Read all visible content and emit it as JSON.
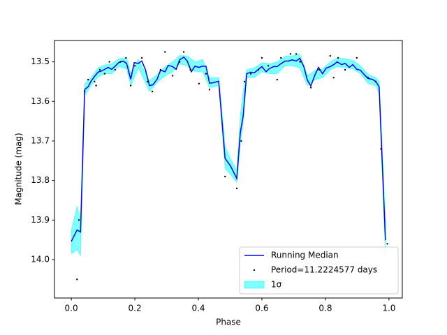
{
  "chart_data": {
    "type": "light-curve",
    "x_label": "Phase",
    "y_label": "Magnitude (mag)",
    "xlim": [
      -0.053,
      1.042
    ],
    "ylim": [
      13.446,
      14.097
    ],
    "invert_y": true,
    "xticks": [
      {
        "value": 0,
        "label": "0.0"
      },
      0.2,
      0.4,
      0.6,
      0.8,
      {
        "value": 1,
        "label": "1.0"
      }
    ],
    "yticks": [
      13.5,
      13.6,
      13.7,
      13.8,
      13.9,
      {
        "value": 14,
        "label": "14.0"
      }
    ],
    "legend": "lower right",
    "series": [
      {
        "name": "Running Median",
        "type": "line",
        "color": "#0000ff",
        "x": [
          0,
          0.018,
          0.029,
          0.042,
          0.053,
          0.062,
          0.073,
          0.084,
          0.095,
          0.105,
          0.116,
          0.127,
          0.138,
          0.149,
          0.163,
          0.174,
          0.187,
          0.198,
          0.211,
          0.222,
          0.233,
          0.246,
          0.257,
          0.27,
          0.281,
          0.295,
          0.305,
          0.319,
          0.33,
          0.341,
          0.354,
          0.365,
          0.378,
          0.389,
          0.402,
          0.413,
          0.424,
          0.435,
          0.446,
          0.464,
          0.484,
          0.501,
          0.521,
          0.532,
          0.541,
          0.552,
          0.565,
          0.576,
          0.589,
          0.6,
          0.613,
          0.624,
          0.637,
          0.648,
          0.659,
          0.673,
          0.684,
          0.695,
          0.708,
          0.719,
          0.732,
          0.743,
          0.754,
          0.767,
          0.778,
          0.791,
          0.802,
          0.815,
          0.826,
          0.837,
          0.851,
          0.862,
          0.875,
          0.886,
          0.899,
          0.91,
          0.923,
          0.934,
          0.947,
          0.958,
          0.969,
          0.989
        ],
        "values": [
          13.954,
          13.925,
          13.93,
          13.57,
          13.563,
          13.549,
          13.537,
          13.526,
          13.523,
          13.519,
          13.514,
          13.519,
          13.511,
          13.502,
          13.498,
          13.504,
          13.544,
          13.502,
          13.504,
          13.498,
          13.519,
          13.56,
          13.558,
          13.544,
          13.521,
          13.525,
          13.509,
          13.512,
          13.519,
          13.495,
          13.488,
          13.498,
          13.525,
          13.511,
          13.514,
          13.511,
          13.511,
          13.554,
          13.553,
          13.549,
          13.744,
          13.763,
          13.795,
          13.679,
          13.637,
          13.53,
          13.526,
          13.528,
          13.519,
          13.512,
          13.525,
          13.517,
          13.512,
          13.512,
          13.505,
          13.498,
          13.498,
          13.495,
          13.498,
          13.491,
          13.512,
          13.546,
          13.561,
          13.533,
          13.514,
          13.53,
          13.516,
          13.512,
          13.507,
          13.5,
          13.507,
          13.504,
          13.514,
          13.507,
          13.519,
          13.521,
          13.533,
          13.542,
          13.544,
          13.549,
          13.563,
          13.951
        ]
      },
      {
        "name": "Period=11.2224577 days",
        "type": "scatter",
        "color": "#000000",
        "x": [
          0.018,
          0.024,
          0.042,
          0.053,
          0.073,
          0.078,
          0.09,
          0.105,
          0.12,
          0.138,
          0.155,
          0.172,
          0.187,
          0.2,
          0.222,
          0.24,
          0.255,
          0.281,
          0.295,
          0.319,
          0.341,
          0.354,
          0.375,
          0.402,
          0.424,
          0.435,
          0.484,
          0.521,
          0.535,
          0.545,
          0.565,
          0.589,
          0.6,
          0.62,
          0.648,
          0.66,
          0.69,
          0.708,
          0.72,
          0.754,
          0.78,
          0.815,
          0.826,
          0.84,
          0.862,
          0.899,
          0.934,
          0.958,
          0.975,
          0.995
        ],
        "values": [
          14.05,
          13.9,
          13.575,
          13.545,
          13.55,
          13.56,
          13.52,
          13.53,
          13.5,
          13.52,
          13.5,
          13.49,
          13.56,
          13.51,
          13.49,
          13.55,
          13.575,
          13.52,
          13.475,
          13.535,
          13.5,
          13.475,
          13.52,
          13.555,
          13.53,
          13.57,
          13.79,
          13.82,
          13.7,
          13.55,
          13.53,
          13.52,
          13.49,
          13.51,
          13.545,
          13.49,
          13.48,
          13.48,
          13.5,
          13.565,
          13.52,
          13.485,
          13.54,
          13.49,
          13.52,
          13.49,
          13.54,
          13.55,
          13.72,
          13.96
        ]
      },
      {
        "name": "1σ",
        "type": "band",
        "color": "#00ffff",
        "x": [
          0,
          0.018,
          0.029,
          0.042,
          0.062,
          0.084,
          0.105,
          0.127,
          0.149,
          0.174,
          0.187,
          0.211,
          0.246,
          0.27,
          0.295,
          0.319,
          0.341,
          0.365,
          0.389,
          0.413,
          0.435,
          0.464,
          0.484,
          0.501,
          0.521,
          0.532,
          0.541,
          0.552,
          0.576,
          0.6,
          0.624,
          0.648,
          0.673,
          0.695,
          0.719,
          0.743,
          0.767,
          0.791,
          0.815,
          0.837,
          0.862,
          0.886,
          0.91,
          0.934,
          0.958,
          0.969,
          0.989
        ],
        "lower": [
          13.925,
          13.865,
          13.9,
          13.555,
          13.54,
          13.515,
          13.508,
          13.505,
          13.492,
          13.49,
          13.53,
          13.494,
          13.548,
          13.532,
          13.512,
          13.5,
          13.484,
          13.485,
          13.5,
          13.494,
          13.54,
          13.54,
          13.715,
          13.745,
          13.775,
          13.635,
          13.575,
          13.52,
          13.515,
          13.502,
          13.505,
          13.5,
          13.485,
          13.485,
          13.48,
          13.535,
          13.522,
          13.518,
          13.5,
          13.49,
          13.492,
          13.496,
          13.51,
          13.532,
          13.54,
          13.55,
          13.905
        ],
        "upper": [
          13.985,
          13.975,
          13.99,
          13.585,
          13.56,
          13.538,
          13.53,
          13.53,
          13.512,
          13.518,
          13.56,
          13.515,
          13.575,
          13.552,
          13.535,
          13.525,
          13.505,
          13.51,
          13.525,
          13.525,
          13.565,
          13.56,
          13.77,
          13.785,
          13.805,
          13.705,
          13.65,
          13.54,
          13.54,
          13.525,
          13.53,
          13.53,
          13.51,
          13.51,
          13.515,
          13.56,
          13.545,
          13.54,
          13.52,
          13.512,
          13.515,
          13.518,
          13.53,
          13.555,
          13.56,
          13.58,
          13.995
        ]
      }
    ]
  }
}
